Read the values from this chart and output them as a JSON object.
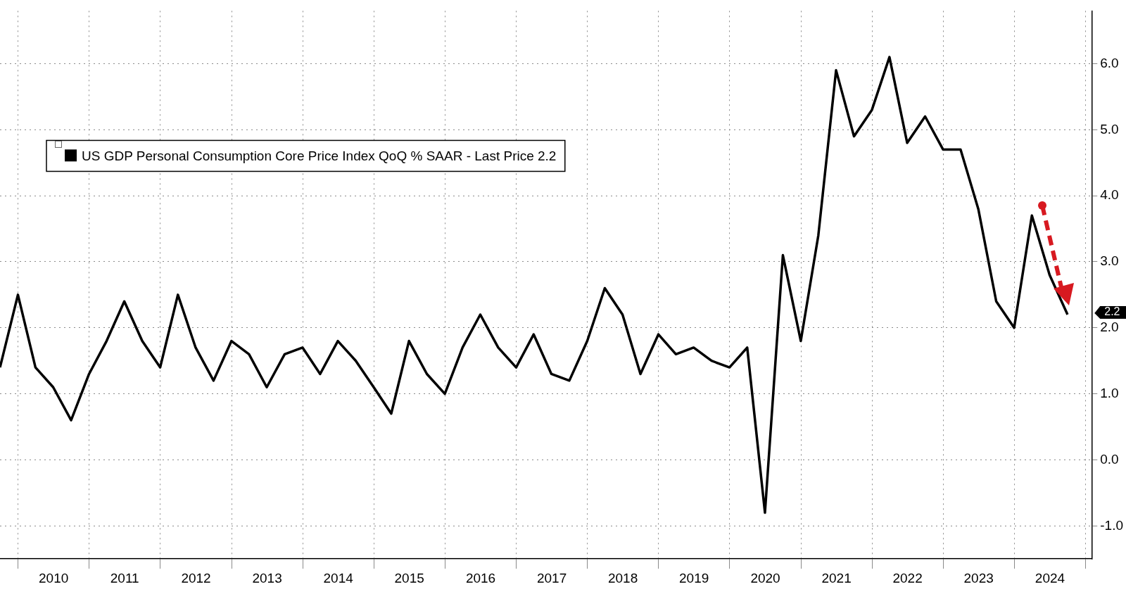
{
  "chart_data": {
    "type": "line",
    "x": [
      "2009-09-30",
      "2009-12-31",
      "2010-03-31",
      "2010-06-30",
      "2010-09-30",
      "2010-12-31",
      "2011-03-31",
      "2011-06-30",
      "2011-09-30",
      "2011-12-31",
      "2012-03-31",
      "2012-06-30",
      "2012-09-30",
      "2012-12-31",
      "2013-03-31",
      "2013-06-30",
      "2013-09-30",
      "2013-12-31",
      "2014-03-31",
      "2014-06-30",
      "2014-09-30",
      "2014-12-31",
      "2015-03-31",
      "2015-06-30",
      "2015-09-30",
      "2015-12-31",
      "2016-03-31",
      "2016-06-30",
      "2016-09-30",
      "2016-12-31",
      "2017-03-31",
      "2017-06-30",
      "2017-09-30",
      "2017-12-31",
      "2018-03-31",
      "2018-06-30",
      "2018-09-30",
      "2018-12-31",
      "2019-03-31",
      "2019-06-30",
      "2019-09-30",
      "2019-12-31",
      "2020-03-31",
      "2020-06-30",
      "2020-09-30",
      "2020-12-31",
      "2021-03-31",
      "2021-06-30",
      "2021-09-30",
      "2021-12-31",
      "2022-03-31",
      "2022-06-30",
      "2022-09-30",
      "2022-12-31",
      "2023-03-31",
      "2023-06-30",
      "2023-09-30",
      "2023-12-31",
      "2024-03-31",
      "2024-06-30",
      "2024-09-30"
    ],
    "series": [
      {
        "name": "US GDP Personal Consumption Core Price Index QoQ % SAAR - Last Price 2.2",
        "color": "#000000",
        "values": [
          1.4,
          2.5,
          1.4,
          1.1,
          0.6,
          1.3,
          1.8,
          2.4,
          1.8,
          1.4,
          2.5,
          1.7,
          1.2,
          1.8,
          1.6,
          1.1,
          1.6,
          1.7,
          1.3,
          1.8,
          1.5,
          1.1,
          0.7,
          1.8,
          1.3,
          1.0,
          1.7,
          2.2,
          1.7,
          1.4,
          1.9,
          1.3,
          1.2,
          1.8,
          2.6,
          2.2,
          1.3,
          1.9,
          1.6,
          1.7,
          1.5,
          1.4,
          1.7,
          -0.8,
          3.1,
          1.8,
          3.4,
          5.9,
          4.9,
          5.3,
          6.1,
          4.8,
          5.2,
          4.7,
          4.7,
          3.8,
          2.4,
          2.0,
          3.7,
          2.8,
          2.2
        ]
      }
    ],
    "xlim": [
      "2009-09-30",
      "2025-02-01"
    ],
    "xticks": [
      {
        "value": "2010-01-01",
        "label": null
      },
      {
        "value": "2010-07-02",
        "label": "2010"
      },
      {
        "value": "2011-01-01",
        "label": null
      },
      {
        "value": "2011-07-02",
        "label": "2011"
      },
      {
        "value": "2012-01-01",
        "label": null
      },
      {
        "value": "2012-07-02",
        "label": "2012"
      },
      {
        "value": "2013-01-01",
        "label": null
      },
      {
        "value": "2013-07-02",
        "label": "2013"
      },
      {
        "value": "2014-01-01",
        "label": null
      },
      {
        "value": "2014-07-02",
        "label": "2014"
      },
      {
        "value": "2015-01-01",
        "label": null
      },
      {
        "value": "2015-07-02",
        "label": "2015"
      },
      {
        "value": "2016-01-01",
        "label": null
      },
      {
        "value": "2016-07-02",
        "label": "2016"
      },
      {
        "value": "2017-01-01",
        "label": null
      },
      {
        "value": "2017-07-02",
        "label": "2017"
      },
      {
        "value": "2018-01-01",
        "label": null
      },
      {
        "value": "2018-07-02",
        "label": "2018"
      },
      {
        "value": "2019-01-01",
        "label": null
      },
      {
        "value": "2019-07-02",
        "label": "2019"
      },
      {
        "value": "2020-01-01",
        "label": null
      },
      {
        "value": "2020-07-02",
        "label": "2020"
      },
      {
        "value": "2021-01-01",
        "label": null
      },
      {
        "value": "2021-07-02",
        "label": "2021"
      },
      {
        "value": "2022-01-01",
        "label": null
      },
      {
        "value": "2022-07-02",
        "label": "2022"
      },
      {
        "value": "2023-01-01",
        "label": null
      },
      {
        "value": "2023-07-02",
        "label": "2023"
      },
      {
        "value": "2024-01-01",
        "label": null
      },
      {
        "value": "2024-07-02",
        "label": "2024"
      },
      {
        "value": "2025-01-01",
        "label": null
      }
    ],
    "ylim": [
      -1.5,
      6.8
    ],
    "yticks": [
      {
        "value": -1,
        "label": "-1.0"
      },
      {
        "value": 0,
        "label": "0.0"
      },
      {
        "value": 1,
        "label": "1.0"
      },
      {
        "value": 2,
        "label": "2.0"
      },
      {
        "value": 3,
        "label": "3.0"
      },
      {
        "value": 4,
        "label": "4.0"
      },
      {
        "value": 5,
        "label": "5.0"
      },
      {
        "value": 6,
        "label": "6.0"
      }
    ],
    "annotations": [
      "2.2"
    ],
    "grid": true,
    "legend": "top left",
    "marker": "none",
    "line_style": "solid"
  }
}
